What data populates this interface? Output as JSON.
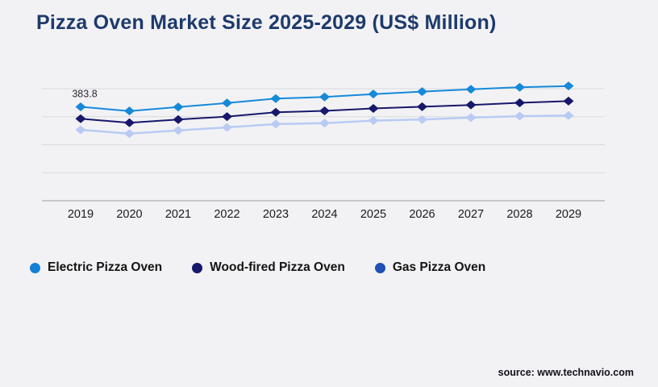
{
  "page": {
    "title": "Pizza Oven Market Size 2025-2029 (US$ Million)",
    "background_color": "#f2f2f5",
    "title_color": "#1e3a6b"
  },
  "footer": {
    "source": "source: www.technavio.com"
  },
  "chart_data": {
    "type": "line",
    "title": "Pizza Oven Market Size 2025-2029 (US$ Million)",
    "xlabel": "",
    "ylabel": "",
    "x": [
      2019,
      2020,
      2021,
      2022,
      2023,
      2024,
      2025,
      2026,
      2027,
      2028,
      2029
    ],
    "series": [
      {
        "name": "Electric Pizza Oven",
        "color": "#1689d8",
        "legend_color": "#1380d5",
        "marker": "diamond",
        "line_width": 2,
        "values": [
          383.8,
          380.1,
          383.6,
          387.2,
          391.2,
          392.6,
          395.2,
          397.4,
          399.5,
          401.3,
          402.4
        ]
      },
      {
        "name": "Wood-fired Pizza Oven",
        "color": "#17176b",
        "legend_color": "#17176b",
        "marker": "diamond",
        "line_width": 2,
        "values": [
          373.2,
          369.6,
          372.5,
          375.1,
          379.0,
          380.2,
          382.4,
          383.9,
          385.5,
          387.4,
          388.9
        ]
      },
      {
        "name": "Gas Pizza Oven",
        "color": "#b9cbf3",
        "legend_color": "#2050b3",
        "marker": "diamond",
        "line_width": 2.5,
        "values": [
          363.3,
          359.9,
          362.8,
          365.5,
          368.4,
          369.3,
          371.5,
          372.5,
          374.2,
          375.5,
          376.1
        ]
      }
    ],
    "annotations": [
      {
        "series_index": 0,
        "x": 2019,
        "text": "383.8"
      }
    ],
    "ylim": [
      300,
      400
    ],
    "gridlines": [
      300,
      325,
      350,
      375,
      400
    ],
    "y_tick_labels_visible": false,
    "grid": "horizontal",
    "grid_color": "#dadade",
    "axis_color": "#adadb5",
    "tick_label_color": "#1b1b1b",
    "annotation_color": "#2b2b33",
    "legend_position": "bottom-left",
    "note": "values in US$ Million; only 2019 Electric point labeled on chart, others estimated from gridlines"
  }
}
